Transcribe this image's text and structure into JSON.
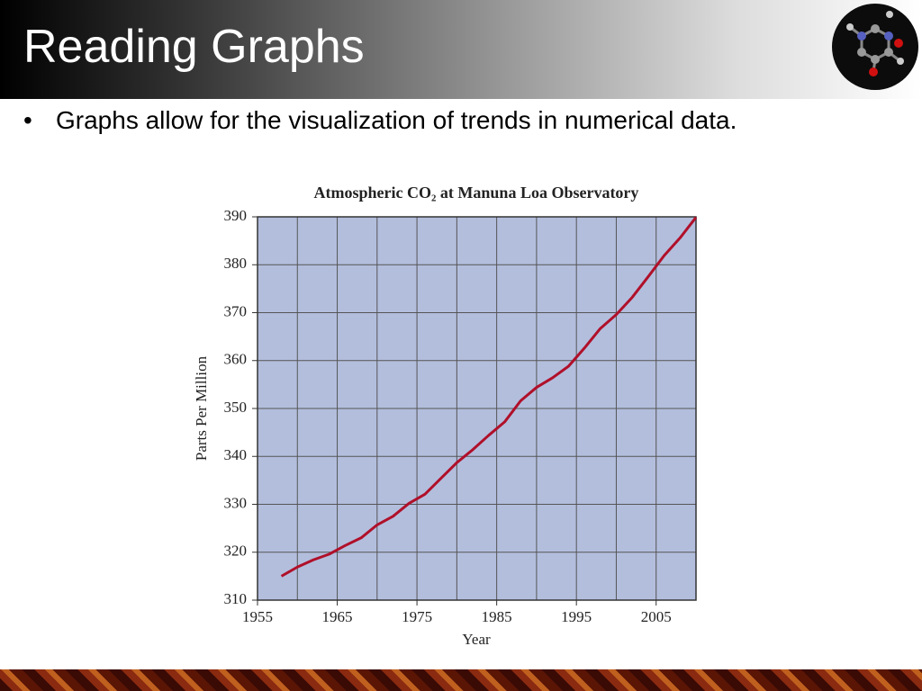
{
  "slide": {
    "title": "Reading Graphs",
    "bullets": [
      "Graphs allow for the visualization of trends in numerical data."
    ]
  },
  "chart_data": {
    "type": "line",
    "title": "Atmospheric CO₂ at Manuna Loa Observatory",
    "x_label": "Year",
    "y_label": "Parts Per Million",
    "x": [
      1958,
      1960,
      1962,
      1964,
      1966,
      1968,
      1970,
      1972,
      1974,
      1976,
      1978,
      1980,
      1982,
      1984,
      1986,
      1988,
      1990,
      1992,
      1994,
      1996,
      1998,
      2000,
      2002,
      2004,
      2006,
      2008,
      2010
    ],
    "values": [
      315.0,
      316.9,
      318.4,
      319.6,
      321.4,
      323.0,
      325.7,
      327.5,
      330.2,
      332.1,
      335.4,
      338.7,
      341.4,
      344.4,
      347.2,
      351.6,
      354.4,
      356.4,
      358.8,
      362.6,
      366.7,
      369.6,
      373.2,
      377.5,
      381.9,
      385.6,
      389.9
    ],
    "color": "#b0102a",
    "xlim": [
      1955,
      2010
    ],
    "xticks": [
      1955,
      1965,
      1975,
      1985,
      1995,
      2005
    ],
    "ylim": [
      310,
      390
    ],
    "yticks": [
      310,
      320,
      330,
      340,
      350,
      360,
      370,
      380,
      390
    ],
    "grid": true
  }
}
